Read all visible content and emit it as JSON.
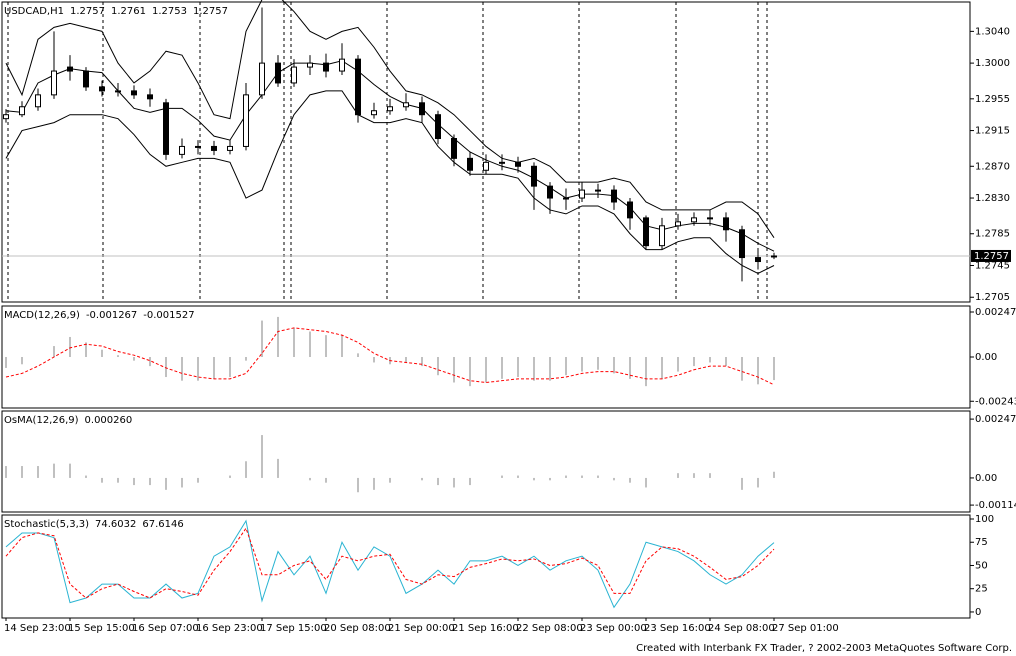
{
  "chart_data": [
    {
      "type": "candlestick",
      "title": "USDCAD,H1",
      "open": [
        1.293,
        1.2935,
        1.2945,
        1.296,
        1.2995,
        1.299,
        1.297,
        1.2965,
        1.2965,
        1.296,
        1.295,
        1.2885,
        1.2895,
        1.2895,
        1.289,
        1.2895,
        1.296,
        1.3,
        1.2975,
        1.2995,
        1.3,
        1.299,
        1.3005,
        1.2935,
        1.294,
        1.2945,
        1.295,
        1.2935,
        1.2905,
        1.288,
        1.2865,
        1.2875,
        1.2875,
        1.287,
        1.2845,
        1.283,
        1.283,
        1.284,
        1.284,
        1.2825,
        1.2805,
        1.277,
        1.2795,
        1.28,
        1.2805,
        1.2805,
        1.279,
        1.2755,
        1.2757
      ],
      "high": [
        1.2942,
        1.2952,
        1.2968,
        1.304,
        1.301,
        1.2995,
        1.2978,
        1.2975,
        1.2972,
        1.2968,
        1.2955,
        1.2905,
        1.2903,
        1.2902,
        1.2903,
        1.2975,
        1.307,
        1.301,
        1.3005,
        1.301,
        1.3012,
        1.3025,
        1.301,
        1.295,
        1.2955,
        1.2962,
        1.2958,
        1.294,
        1.291,
        1.2888,
        1.2885,
        1.2885,
        1.2882,
        1.2875,
        1.285,
        1.2842,
        1.285,
        1.2848,
        1.2846,
        1.283,
        1.2808,
        1.2805,
        1.281,
        1.2812,
        1.2815,
        1.2812,
        1.2795,
        1.2765,
        1.2761
      ],
      "low": [
        1.2925,
        1.2932,
        1.294,
        1.2955,
        1.2978,
        1.2965,
        1.2958,
        1.2958,
        1.2955,
        1.2945,
        1.2878,
        1.288,
        1.2885,
        1.2884,
        1.2885,
        1.289,
        1.2955,
        1.297,
        1.297,
        1.2985,
        1.2982,
        1.2985,
        1.2925,
        1.293,
        1.2935,
        1.294,
        1.2925,
        1.2898,
        1.287,
        1.2858,
        1.286,
        1.2865,
        1.2862,
        1.2815,
        1.281,
        1.2815,
        1.2825,
        1.283,
        1.2815,
        1.279,
        1.2765,
        1.2765,
        1.279,
        1.2795,
        1.2795,
        1.2775,
        1.2725,
        1.274,
        1.2753
      ],
      "close": [
        1.2935,
        1.2945,
        1.296,
        1.299,
        1.299,
        1.297,
        1.2965,
        1.2965,
        1.296,
        1.2955,
        1.2885,
        1.2895,
        1.2895,
        1.289,
        1.2895,
        1.296,
        1.3,
        1.2975,
        1.2995,
        1.3,
        1.299,
        1.3005,
        1.2935,
        1.294,
        1.2945,
        1.295,
        1.2935,
        1.2905,
        1.288,
        1.2865,
        1.2875,
        1.2875,
        1.287,
        1.2845,
        1.283,
        1.283,
        1.284,
        1.284,
        1.2825,
        1.2805,
        1.277,
        1.2795,
        1.28,
        1.2805,
        1.2805,
        1.279,
        1.2755,
        1.275,
        1.2757
      ],
      "bands": {
        "color": "#000000",
        "upper": [
          1.3,
          1.296,
          1.303,
          1.3045,
          1.305,
          1.3045,
          1.304,
          1.3,
          1.2975,
          1.299,
          1.3015,
          1.301,
          1.2975,
          1.2935,
          1.293,
          1.304,
          1.308,
          1.3085,
          1.3065,
          1.304,
          1.303,
          1.304,
          1.3045,
          1.302,
          1.299,
          1.2965,
          1.296,
          1.295,
          1.2935,
          1.2915,
          1.2895,
          1.288,
          1.2875,
          1.288,
          1.287,
          1.285,
          1.285,
          1.285,
          1.2855,
          1.285,
          1.2825,
          1.2815,
          1.2815,
          1.2815,
          1.2815,
          1.2825,
          1.2825,
          1.281,
          1.278
        ],
        "middle": [
          1.294,
          1.2938,
          1.2975,
          1.2985,
          1.2993,
          1.299,
          1.2988,
          1.2965,
          1.2943,
          1.2938,
          1.2943,
          1.2943,
          1.2928,
          1.2908,
          1.2903,
          1.2935,
          1.296,
          1.2988,
          1.3,
          1.3,
          1.2998,
          1.3003,
          1.299,
          1.2973,
          1.2958,
          1.2948,
          1.2943,
          1.2923,
          1.2905,
          1.2888,
          1.2878,
          1.287,
          1.2865,
          1.2855,
          1.2843,
          1.283,
          1.2835,
          1.2835,
          1.2833,
          1.2818,
          1.2795,
          1.279,
          1.2795,
          1.2798,
          1.2798,
          1.2793,
          1.2785,
          1.2773,
          1.2763
        ],
        "lower": [
          1.288,
          1.2915,
          1.292,
          1.2925,
          1.2935,
          1.2935,
          1.2935,
          1.293,
          1.291,
          1.2885,
          1.287,
          1.2875,
          1.288,
          1.288,
          1.2875,
          1.283,
          1.284,
          1.289,
          1.2935,
          1.296,
          1.2965,
          1.2965,
          1.2935,
          1.2925,
          1.2925,
          1.293,
          1.2925,
          1.2895,
          1.2875,
          1.286,
          1.286,
          1.286,
          1.2855,
          1.283,
          1.2815,
          1.281,
          1.282,
          1.282,
          1.281,
          1.2785,
          1.2765,
          1.2765,
          1.2775,
          1.278,
          1.278,
          1.276,
          1.2745,
          1.2735,
          1.2745
        ]
      },
      "ylim": [
        1.2699,
        1.3077
      ],
      "yticks": [
        {
          "value": 1.304,
          "label": "1.3040"
        },
        {
          "value": 1.3,
          "label": "1.3000"
        },
        1.2955,
        1.2915,
        {
          "value": 1.287,
          "label": "1.2870"
        },
        {
          "value": 1.283,
          "label": "1.2830"
        },
        1.2785,
        1.2745,
        1.2705
      ]
    },
    {
      "type": "combo",
      "series": [
        {
          "name": "MACD(12,26,9)",
          "color": "#c0c0c0",
          "values": [
            -0.0006,
            -0.0004,
            0.0,
            0.0006,
            0.0011,
            0.0008,
            0.0004,
            0.0001,
            -0.0002,
            -0.0005,
            -0.0011,
            -0.0013,
            -0.0013,
            -0.0012,
            -0.0011,
            -0.0002,
            0.002,
            0.0022,
            0.0016,
            0.0014,
            0.0012,
            0.0012,
            0.0002,
            -0.0003,
            -0.0004,
            -0.0003,
            -0.0005,
            -0.001,
            -0.0014,
            -0.0016,
            -0.0014,
            -0.0012,
            -0.0011,
            -0.0013,
            -0.0013,
            -0.001,
            -0.0008,
            -0.0007,
            -0.0009,
            -0.0012,
            -0.0016,
            -0.0012,
            -0.0008,
            -0.0005,
            -0.0003,
            -0.0005,
            -0.0013,
            -0.0015,
            -0.001267
          ]
        },
        {
          "color": "#ff0000",
          "values": [
            -0.0011,
            -0.0009,
            -0.0005,
            0.0,
            0.0005,
            0.0007,
            0.0006,
            0.0003,
            0.0001,
            -0.0002,
            -0.0006,
            -0.0009,
            -0.0011,
            -0.0012,
            -0.0012,
            -0.0009,
            0.0002,
            0.0014,
            0.0016,
            0.0015,
            0.0014,
            0.0012,
            0.0008,
            0.0002,
            -0.0002,
            -0.0003,
            -0.0004,
            -0.0007,
            -0.001,
            -0.0013,
            -0.0014,
            -0.0013,
            -0.0012,
            -0.0012,
            -0.0012,
            -0.0011,
            -0.0009,
            -0.0008,
            -0.0008,
            -0.001,
            -0.0012,
            -0.0012,
            -0.001,
            -0.0007,
            -0.0005,
            -0.0005,
            -0.0008,
            -0.0011,
            -0.001527
          ]
        }
      ],
      "ylim": [
        -0.0028,
        0.0028
      ],
      "yticks": [
        0.00247,
        {
          "value": 0,
          "label": "0.00"
        },
        -0.00243
      ]
    },
    {
      "type": "bar",
      "series": [
        {
          "name": "OsMA(12,26,9)",
          "color": "#c0c0c0",
          "values": [
            0.0005,
            0.0005,
            0.0005,
            0.0006,
            0.0006,
            0.0001,
            -0.0002,
            -0.0002,
            -0.0003,
            -0.0003,
            -0.0005,
            -0.0004,
            -0.0002,
            0.0,
            0.0001,
            0.0007,
            0.0018,
            0.0008,
            0.0,
            -0.0001,
            -0.0002,
            0.0,
            -0.0006,
            -0.0005,
            -0.0002,
            0.0,
            -0.0001,
            -0.0003,
            -0.0004,
            -0.0003,
            0.0,
            0.0001,
            0.0001,
            -0.0001,
            -0.0001,
            0.0001,
            0.0001,
            0.0001,
            -0.0001,
            -0.0002,
            -0.0004,
            0.0,
            0.0002,
            0.0002,
            0.0002,
            0.0,
            -0.0005,
            -0.0004,
            0.00026
          ],
          "value_labels": [
            null,
            null,
            null,
            null,
            null,
            null,
            null,
            null,
            null,
            null,
            null,
            null,
            null,
            null,
            null,
            null,
            null,
            null,
            null,
            null,
            null,
            null,
            null,
            null,
            null,
            null,
            null,
            null,
            null,
            null,
            null,
            null,
            null,
            null,
            null,
            null,
            null,
            null,
            null,
            null,
            null,
            null,
            null,
            null,
            null,
            null,
            null,
            null,
            "0.000260"
          ]
        }
      ],
      "ylim": [
        -0.00143,
        0.00281
      ],
      "yticks": [
        0.00247,
        {
          "value": 0,
          "label": "0.00"
        },
        -0.00114
      ]
    },
    {
      "type": "line",
      "categories": [
        "14 Sep 23:00",
        null,
        null,
        null,
        "15 Sep 15:00",
        null,
        null,
        null,
        "16 Sep 07:00",
        null,
        null,
        null,
        "16 Sep 23:00",
        null,
        null,
        null,
        "17 Sep 15:00",
        null,
        null,
        null,
        "20 Sep 08:00",
        null,
        null,
        null,
        "21 Sep 00:00",
        null,
        null,
        null,
        "21 Sep 16:00",
        null,
        null,
        null,
        "22 Sep 08:00",
        null,
        null,
        null,
        "23 Sep 00:00",
        null,
        null,
        null,
        "23 Sep 16:00",
        null,
        null,
        null,
        "24 Sep 08:00",
        null,
        null,
        null,
        "27 Sep 01:00"
      ],
      "series": [
        {
          "name": "Stochastic(5,3,3)",
          "color": "#2ab4d2",
          "values": [
            70,
            85,
            85,
            80,
            10,
            15,
            30,
            30,
            15,
            15,
            30,
            15,
            20,
            60,
            70,
            98,
            12,
            65,
            40,
            60,
            20,
            75,
            45,
            70,
            60,
            20,
            30,
            45,
            30,
            55,
            55,
            60,
            50,
            60,
            45,
            55,
            60,
            45,
            5,
            30,
            75,
            70,
            65,
            55,
            40,
            30,
            40,
            60,
            74.6032
          ]
        },
        {
          "color": "#ff0000",
          "dashed": true,
          "values": [
            60,
            80,
            85,
            82,
            30,
            15,
            25,
            30,
            22,
            15,
            25,
            22,
            18,
            45,
            65,
            90,
            40,
            40,
            50,
            55,
            35,
            60,
            55,
            60,
            62,
            35,
            30,
            40,
            38,
            48,
            52,
            57,
            55,
            57,
            50,
            52,
            58,
            50,
            20,
            20,
            55,
            70,
            68,
            60,
            48,
            35,
            38,
            50,
            67.6146
          ]
        }
      ],
      "ylim": [
        -6.5,
        104.3
      ],
      "yticks": [
        100,
        75,
        50,
        25,
        0
      ]
    }
  ],
  "footer": "Created with Interbank FX Trader, ? 2002-2003 MetaQuotes Software Corp."
}
